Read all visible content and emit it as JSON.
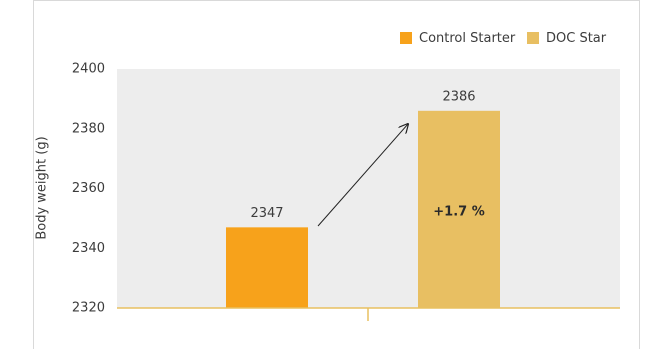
{
  "chart_data": {
    "type": "bar",
    "ylabel": "Body weight (g)",
    "series": [
      {
        "name": "Control Starter",
        "color": "#f7a21b",
        "values": [
          2347
        ]
      },
      {
        "name": "DOC Star",
        "color": "#e8bf62",
        "values": [
          2386
        ]
      }
    ],
    "annotations": [
      "+1.7 %"
    ],
    "ylim": [
      2320,
      2400
    ],
    "yticks": [
      2320,
      2340,
      2360,
      2380,
      2400
    ],
    "grid": false,
    "legend": "top-right"
  }
}
